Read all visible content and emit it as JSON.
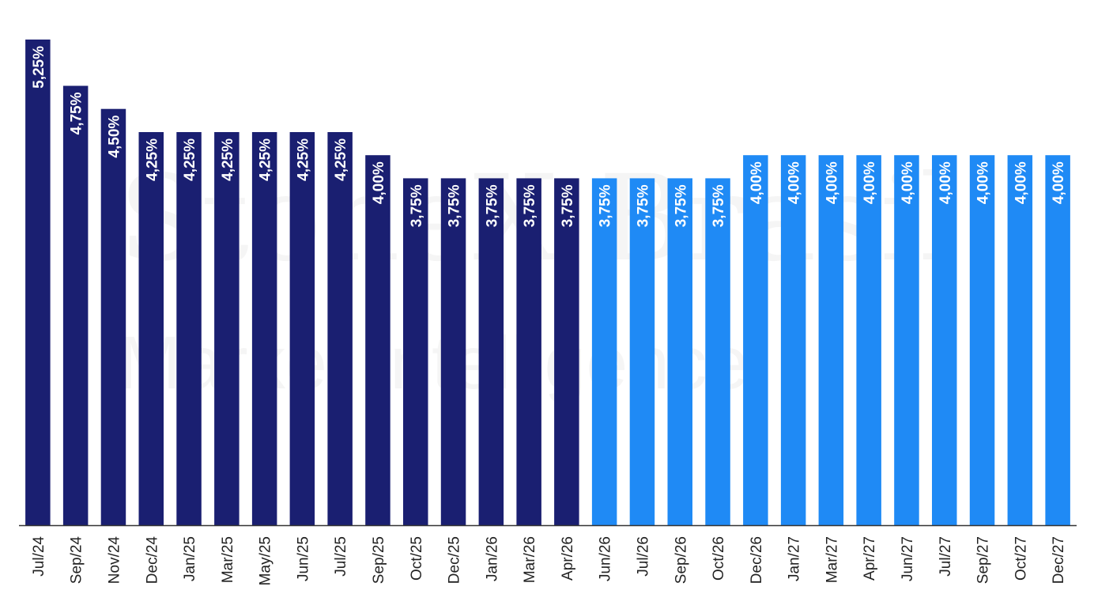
{
  "watermark": {
    "line1": "StoneX Brasil",
    "line2": "Market Intelligence"
  },
  "colors": {
    "historical": "#1a1f71",
    "projection": "#1f8af5",
    "axis": "#333333",
    "tick_text": "#222222",
    "label_text": "#ffffff"
  },
  "chart_data": {
    "type": "bar",
    "title": "",
    "xlabel": "",
    "ylabel": "",
    "ylim": [
      0,
      5.25
    ],
    "grid": false,
    "legend": "none",
    "categories": [
      "Jul/24",
      "Sep/24",
      "Nov/24",
      "Dec/24",
      "Jan/25",
      "Mar/25",
      "May/25",
      "Jun/25",
      "Jul/25",
      "Sep/25",
      "Oct/25",
      "Dec/25",
      "Jan/26",
      "Mar/26",
      "Apr/26",
      "Jun/26",
      "Jul/26",
      "Sep/26",
      "Oct/26",
      "Dec/26",
      "Jan/27",
      "Mar/27",
      "Apr/27",
      "Jun/27",
      "Jul/27",
      "Sep/27",
      "Oct/27",
      "Dec/27"
    ],
    "values": [
      5.25,
      4.75,
      4.5,
      4.25,
      4.25,
      4.25,
      4.25,
      4.25,
      4.25,
      4.0,
      3.75,
      3.75,
      3.75,
      3.75,
      3.75,
      3.75,
      3.75,
      3.75,
      3.75,
      4.0,
      4.0,
      4.0,
      4.0,
      4.0,
      4.0,
      4.0,
      4.0,
      4.0
    ],
    "labels": [
      "5,25%",
      "4,75%",
      "4,50%",
      "4,25%",
      "4,25%",
      "4,25%",
      "4,25%",
      "4,25%",
      "4,25%",
      "4,00%",
      "3,75%",
      "3,75%",
      "3,75%",
      "3,75%",
      "3,75%",
      "3,75%",
      "3,75%",
      "3,75%",
      "3,75%",
      "4,00%",
      "4,00%",
      "4,00%",
      "4,00%",
      "4,00%",
      "4,00%",
      "4,00%",
      "4,00%",
      "4,00%"
    ],
    "bar_group": [
      "historical",
      "historical",
      "historical",
      "historical",
      "historical",
      "historical",
      "historical",
      "historical",
      "historical",
      "historical",
      "historical",
      "historical",
      "historical",
      "historical",
      "historical",
      "projection",
      "projection",
      "projection",
      "projection",
      "projection",
      "projection",
      "projection",
      "projection",
      "projection",
      "projection",
      "projection",
      "projection",
      "projection"
    ]
  }
}
